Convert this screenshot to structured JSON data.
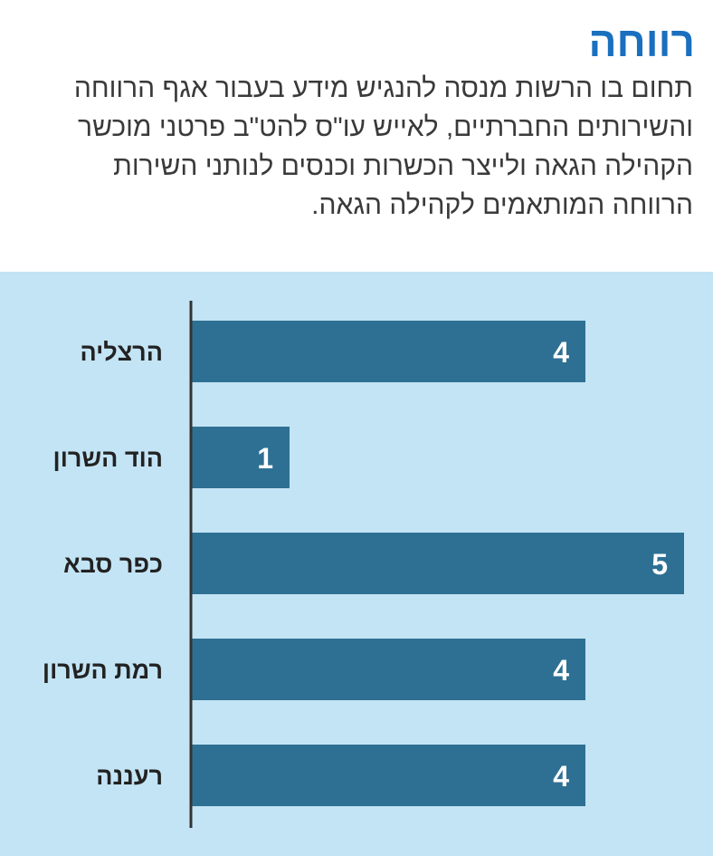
{
  "header": {
    "title": "רווחה",
    "subtitle": "תחום בו הרשות מנסה להנגיש מידע בעבור אגף הרווחה והשירותים החברתיים, לאייש עו\"ס להט\"ב פרטני מוכשר הקהילה הגאה ולייצר הכשרות וכנסים לנותני השירות הרווחה המותאמים לקהילה הגאה."
  },
  "colors": {
    "title": "#1a6fbf",
    "chart_background": "#c3e4f5",
    "bar": "#2e7093",
    "axis": "#333333"
  },
  "chart_data": {
    "type": "bar",
    "orientation": "horizontal",
    "categories": [
      "הרצליה",
      "הוד השרון",
      "כפר סבא",
      "רמת השרון",
      "רעננה"
    ],
    "values": [
      4,
      1,
      5,
      4,
      4
    ],
    "xlim": [
      0,
      5
    ],
    "grid": false,
    "data_labels": true
  }
}
